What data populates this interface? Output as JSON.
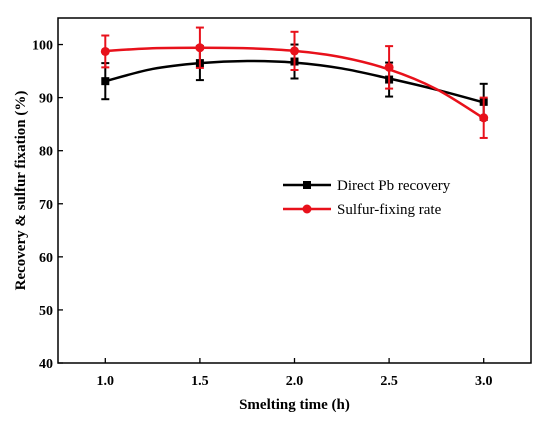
{
  "chart_data": {
    "type": "scatter",
    "xlabel": "Smelting time (h)",
    "ylabel": "Recovery & sulfur fixation (%)",
    "xlim": [
      0.75,
      3.25
    ],
    "ylim": [
      40,
      105
    ],
    "x_ticks": [
      "1.0",
      "1.5",
      "2.0",
      "2.5",
      "3.0"
    ],
    "y_ticks": [
      "40",
      "50",
      "60",
      "70",
      "80",
      "90",
      "100"
    ],
    "legend_position": "right-middle",
    "grid": false,
    "series": [
      {
        "name": "Direct Pb recovery",
        "color": "#000000",
        "marker": "square",
        "x": [
          1.0,
          1.5,
          2.0,
          2.5,
          3.0
        ],
        "y": [
          93.1,
          96.5,
          96.8,
          93.4,
          89.2
        ],
        "err": [
          3.4,
          3.2,
          3.2,
          3.2,
          3.4
        ],
        "fit": [
          [
            1.0,
            93.1
          ],
          [
            1.25,
            95.4
          ],
          [
            1.5,
            96.5
          ],
          [
            1.75,
            96.9
          ],
          [
            2.0,
            96.6
          ],
          [
            2.25,
            95.5
          ],
          [
            2.5,
            93.6
          ],
          [
            2.75,
            91.5
          ],
          [
            3.0,
            89.1
          ]
        ]
      },
      {
        "name": "Sulfur-fixing rate",
        "color": "#e8111b",
        "marker": "circle",
        "x": [
          1.0,
          1.5,
          2.0,
          2.5,
          3.0
        ],
        "y": [
          98.7,
          99.4,
          98.8,
          95.7,
          86.2
        ],
        "err": [
          3.0,
          3.8,
          3.6,
          4.0,
          3.8
        ],
        "fit": [
          [
            1.0,
            98.8
          ],
          [
            1.25,
            99.3
          ],
          [
            1.5,
            99.4
          ],
          [
            1.75,
            99.3
          ],
          [
            2.0,
            98.8
          ],
          [
            2.25,
            97.6
          ],
          [
            2.5,
            95.3
          ],
          [
            2.75,
            91.6
          ],
          [
            3.0,
            86.1
          ]
        ]
      }
    ]
  }
}
